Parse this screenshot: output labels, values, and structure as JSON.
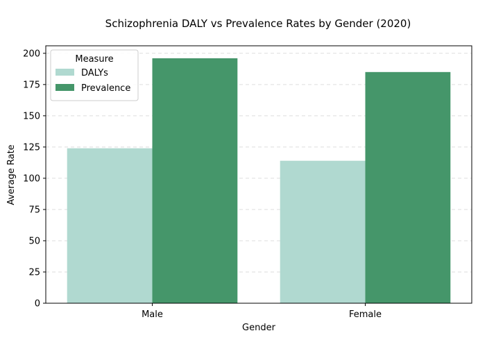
{
  "chart_data": {
    "type": "bar",
    "title": "Schizophrenia DALY vs Prevalence Rates by Gender (2020)",
    "xlabel": "Gender",
    "ylabel": "Average Rate",
    "categories": [
      "Male",
      "Female"
    ],
    "series": [
      {
        "name": "DALYs",
        "values": [
          124,
          114
        ],
        "color": "#b0d9d0"
      },
      {
        "name": "Prevalence",
        "values": [
          196,
          185
        ],
        "color": "#45966a"
      }
    ],
    "ylim": [
      0,
      206
    ],
    "yticks": [
      0,
      25,
      50,
      75,
      100,
      125,
      150,
      175,
      200
    ],
    "grid": "y-dashed",
    "legend": {
      "title": "Measure",
      "placement": "top-left"
    }
  }
}
